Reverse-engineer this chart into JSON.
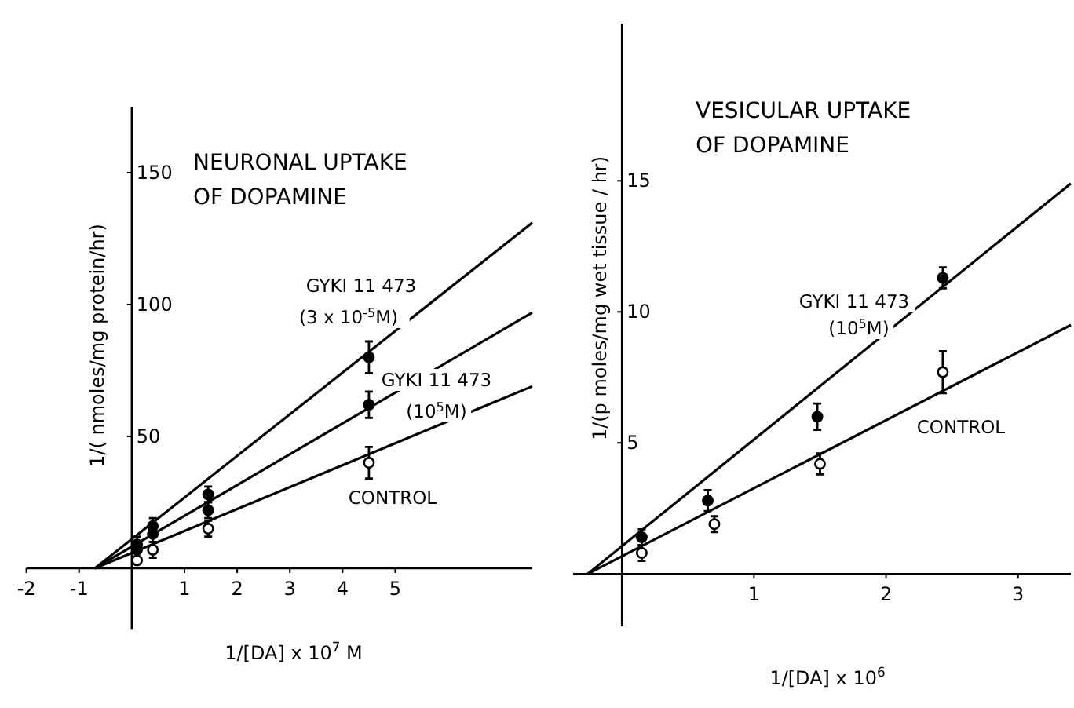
{
  "chart_data": [
    {
      "type": "scatter",
      "title": "NEURONAL UPTAKE OF DOPAMINE",
      "xlabel": "1/[DA] x 10$^{7}$ M",
      "ylabel": "1/( nmoles/mg protein/hr)",
      "xlim": [
        -2,
        7.6
      ],
      "ylim": [
        -23,
        175
      ],
      "xticks": [
        -2,
        -1,
        1,
        2,
        3,
        4,
        5
      ],
      "yticks": [
        50,
        100,
        150
      ],
      "grid": false,
      "marker": "circle",
      "series": [
        {
          "type": "line",
          "color": "#000000",
          "marker": "none",
          "x": [
            -0.7,
            7.6
          ],
          "values": [
            0,
            131
          ]
        },
        {
          "type": "line",
          "color": "#000000",
          "marker": "none",
          "x": [
            -0.7,
            7.6
          ],
          "values": [
            0,
            97
          ]
        },
        {
          "type": "line",
          "color": "#000000",
          "marker": "none",
          "x": [
            -0.7,
            7.6
          ],
          "values": [
            0,
            69
          ]
        },
        {
          "color": "#000000",
          "x": [
            0.1,
            0.4,
            1.45,
            4.5
          ],
          "values": [
            9,
            16,
            28,
            80
          ],
          "errors": [
            3,
            3,
            3,
            6
          ]
        },
        {
          "color": "#000000",
          "x": [
            0.1,
            0.4,
            1.45,
            4.5
          ],
          "values": [
            7,
            13,
            22,
            62
          ],
          "errors": [
            null,
            3,
            3,
            5
          ]
        },
        {
          "color": "#ffffff",
          "x": [
            0.1,
            0.4,
            1.45,
            4.5
          ],
          "values": [
            3,
            7,
            15,
            40
          ],
          "errors": [
            null,
            3,
            3,
            6
          ]
        }
      ],
      "annotations": [
        "GYKI 11 473",
        "(3 x 10$^{-5}$M)",
        "GYKI 11 473",
        "(10$^{5}$M)",
        "CONTROL"
      ]
    },
    {
      "type": "scatter",
      "title": "VESICULAR UPTAKE OF DOPAMINE",
      "xlabel": "1/[DA] x 10$^{6}$",
      "ylabel": "1/(p moles/mg  wet tissue / hr)",
      "xlim": [
        -0.37,
        3.4
      ],
      "ylim": [
        -2,
        21
      ],
      "xticks": [
        1,
        2,
        3
      ],
      "yticks": [
        5,
        10,
        15
      ],
      "grid": false,
      "marker": "circle",
      "series": [
        {
          "type": "line",
          "color": "#000000",
          "marker": "none",
          "x": [
            -0.26,
            3.4
          ],
          "values": [
            0,
            14.9
          ]
        },
        {
          "type": "line",
          "color": "#000000",
          "marker": "none",
          "x": [
            -0.26,
            3.4
          ],
          "values": [
            0,
            9.5
          ]
        },
        {
          "color": "#000000",
          "x": [
            0.15,
            0.65,
            1.48,
            2.43
          ],
          "values": [
            1.4,
            2.8,
            6.0,
            11.3
          ],
          "errors": [
            0.3,
            0.4,
            0.5,
            0.4
          ]
        },
        {
          "color": "#ffffff",
          "x": [
            0.15,
            0.7,
            1.5,
            2.43
          ],
          "values": [
            0.8,
            1.9,
            4.2,
            7.7
          ],
          "errors": [
            0.3,
            0.3,
            0.4,
            0.8
          ]
        }
      ],
      "annotations": [
        "GYKI 11 473",
        "(10$^{5}$M)",
        "CONTROL"
      ]
    }
  ]
}
